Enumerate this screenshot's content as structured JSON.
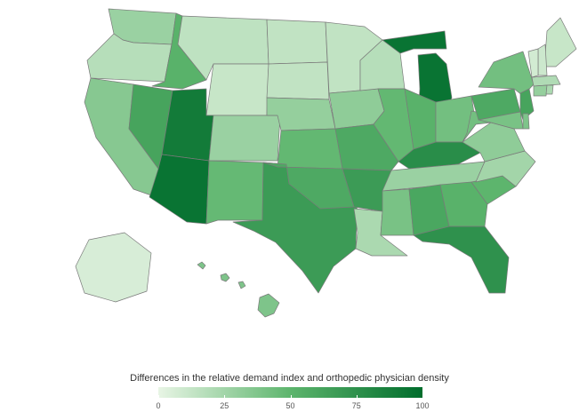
{
  "legend": {
    "title": "Differences in the relative demand index and orthopedic physician density",
    "min": 0,
    "max": 100,
    "ticks": [
      "0",
      "25",
      "50",
      "75",
      "100"
    ],
    "color_low": "#e8f5e5",
    "color_mid": "#5db56d",
    "color_high": "#006d2c"
  },
  "map_data": {
    "type": "choropleth",
    "region": "United States",
    "values": {
      "WA": 28,
      "OR": 18,
      "CA": 35,
      "NV": 62,
      "ID": 52,
      "MT": 15,
      "WY": 12,
      "UT": 90,
      "AZ": 95,
      "CO": 28,
      "NM": 47,
      "TX": 68,
      "ND": 14,
      "SD": 14,
      "NE": 30,
      "KS": 48,
      "OK": 58,
      "MN": 14,
      "IA": 32,
      "MO": 58,
      "AR": 68,
      "LA": 22,
      "WI": 18,
      "IL": 48,
      "MI": 95,
      "IN": 52,
      "OH": 42,
      "KY": 78,
      "TN": 28,
      "MS": 40,
      "AL": 60,
      "GA": 52,
      "FL": 75,
      "SC": 50,
      "NC": 25,
      "VA": 32,
      "WV": 42,
      "PA": 58,
      "NY": 42,
      "ME": 12,
      "NH": 10,
      "VT": 8,
      "MA": 20,
      "NJ": 62,
      "MD": 40,
      "DE": 38,
      "CT": 30,
      "RI": 22,
      "AK": 6,
      "HI": 38
    }
  }
}
